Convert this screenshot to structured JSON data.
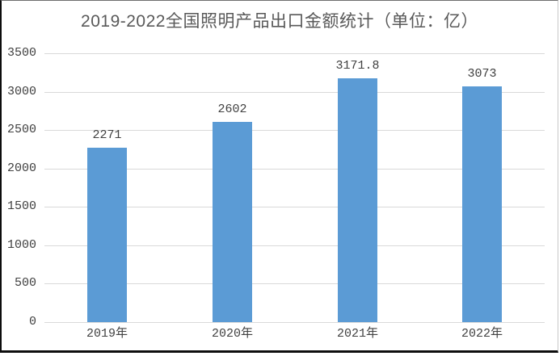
{
  "chart_data": {
    "type": "bar",
    "title": "2019-2022全国照明产品出口金额统计（单位：亿）",
    "categories": [
      "2019年",
      "2020年",
      "2021年",
      "2022年"
    ],
    "values": [
      2271,
      2602,
      3171.8,
      3073
    ],
    "data_labels": [
      "2271",
      "2602",
      "3171.8",
      "3073"
    ],
    "xlabel": "",
    "ylabel": "",
    "ylim": [
      0,
      3500
    ],
    "ytick_interval": 500,
    "yticks": [
      0,
      500,
      1000,
      1500,
      2000,
      2500,
      3000,
      3500
    ],
    "grid": "horizontal-on",
    "legend": "none",
    "colors": {
      "bar": "#5B9BD5",
      "gridline": "#D9D9D9",
      "title_text": "#595959",
      "tick_text": "#404040",
      "frame_border": "#0D0D0D"
    }
  }
}
